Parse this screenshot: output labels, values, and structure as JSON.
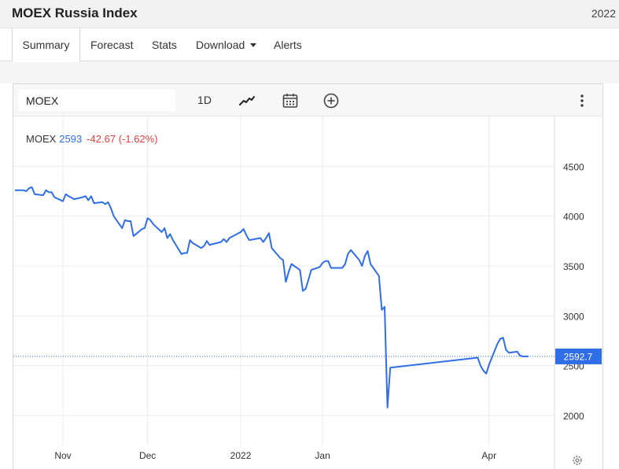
{
  "header": {
    "title": "MOEX Russia Index",
    "year": "2022"
  },
  "tabs": [
    {
      "label": "Summary",
      "active": true
    },
    {
      "label": "Forecast"
    },
    {
      "label": "Stats"
    },
    {
      "label": "Download",
      "has_dropdown": true
    },
    {
      "label": "Alerts"
    }
  ],
  "toolbar": {
    "symbol_value": "MOEX",
    "interval": "1D",
    "chart_type_icon": "line-chart-icon",
    "calendar_icon": "calendar-icon",
    "compare_icon": "plus-circle-icon",
    "menu_icon": "more-vertical-icon"
  },
  "legend": {
    "symbol": "MOEX",
    "price": "2593",
    "change": "-42.67 (-1.62%)"
  },
  "colors": {
    "line": "#2f6ee6",
    "change_negative": "#e0413f",
    "price_tag": "#2f6ee6"
  },
  "chart_data": {
    "type": "line",
    "series": [
      {
        "x": [
          "2021-10-15",
          "2021-10-18",
          "2021-10-19",
          "2021-10-20",
          "2021-10-21",
          "2021-10-22",
          "2021-10-25",
          "2021-10-26",
          "2021-10-27",
          "2021-10-28",
          "2021-10-29",
          "2021-11-01",
          "2021-11-02",
          "2021-11-03",
          "2021-11-05",
          "2021-11-08",
          "2021-11-09",
          "2021-11-10",
          "2021-11-11",
          "2021-11-12",
          "2021-11-15",
          "2021-11-16",
          "2021-11-17",
          "2021-11-18",
          "2021-11-19",
          "2021-11-22",
          "2021-11-23",
          "2021-11-24",
          "2021-11-25",
          "2021-11-26",
          "2021-11-29",
          "2021-11-30",
          "2021-12-01",
          "2021-12-02",
          "2021-12-03",
          "2021-12-06",
          "2021-12-07",
          "2021-12-08",
          "2021-12-09",
          "2021-12-10",
          "2021-12-13",
          "2021-12-14",
          "2021-12-15",
          "2021-12-16",
          "2021-12-17",
          "2021-12-20",
          "2021-12-21",
          "2021-12-22",
          "2021-12-23",
          "2021-12-24",
          "2021-12-27",
          "2021-12-28",
          "2021-12-29",
          "2021-12-30",
          "2022-01-03",
          "2022-01-04",
          "2022-01-05",
          "2022-01-06",
          "2022-01-10",
          "2022-01-11",
          "2022-01-12",
          "2022-01-13",
          "2022-01-14",
          "2022-01-17",
          "2022-01-18",
          "2022-01-19",
          "2022-01-20",
          "2022-01-21",
          "2022-01-24",
          "2022-01-25",
          "2022-01-26",
          "2022-01-27",
          "2022-01-28",
          "2022-01-31",
          "2022-02-01",
          "2022-02-02",
          "2022-02-03",
          "2022-02-04",
          "2022-02-07",
          "2022-02-08",
          "2022-02-09",
          "2022-02-10",
          "2022-02-11",
          "2022-02-14",
          "2022-02-15",
          "2022-02-16",
          "2022-02-17",
          "2022-02-18",
          "2022-02-21",
          "2022-02-22",
          "2022-02-23",
          "2022-02-24",
          "2022-02-25",
          "2022-03-28",
          "2022-03-29",
          "2022-03-30",
          "2022-03-31",
          "2022-04-01",
          "2022-04-04",
          "2022-04-05",
          "2022-04-06",
          "2022-04-07",
          "2022-04-08",
          "2022-04-11",
          "2022-04-12",
          "2022-04-13",
          "2022-04-14",
          "2022-04-15"
        ],
        "y": [
          4260,
          4260,
          4250,
          4280,
          4290,
          4220,
          4210,
          4260,
          4240,
          4240,
          4190,
          4150,
          4220,
          4200,
          4170,
          4190,
          4200,
          4160,
          4200,
          4130,
          4140,
          4120,
          4140,
          4080,
          4000,
          3880,
          3960,
          3950,
          3950,
          3800,
          3870,
          3880,
          3980,
          3960,
          3920,
          3840,
          3880,
          3780,
          3820,
          3760,
          3620,
          3630,
          3630,
          3760,
          3730,
          3680,
          3700,
          3750,
          3710,
          3720,
          3740,
          3770,
          3740,
          3780,
          3840,
          3870,
          3810,
          3760,
          3780,
          3740,
          3780,
          3830,
          3680,
          3580,
          3560,
          3340,
          3440,
          3520,
          3460,
          3250,
          3270,
          3360,
          3460,
          3490,
          3530,
          3550,
          3550,
          3480,
          3480,
          3480,
          3520,
          3620,
          3660,
          3560,
          3500,
          3600,
          3650,
          3520,
          3400,
          3060,
          3090,
          2080,
          2480,
          2580,
          2500,
          2450,
          2420,
          2510,
          2720,
          2770,
          2780,
          2660,
          2630,
          2640,
          2600,
          2593,
          2593,
          2593
        ],
        "name": "MOEX"
      }
    ],
    "x_ticks": [
      "Nov",
      "Dec",
      "2022",
      "Jan",
      "Apr"
    ],
    "y_ticks": [
      2000,
      2500,
      3000,
      3500,
      4000,
      4500
    ],
    "ylim": [
      1700,
      5000
    ],
    "last_value_label": "2592.7",
    "grid": true
  }
}
